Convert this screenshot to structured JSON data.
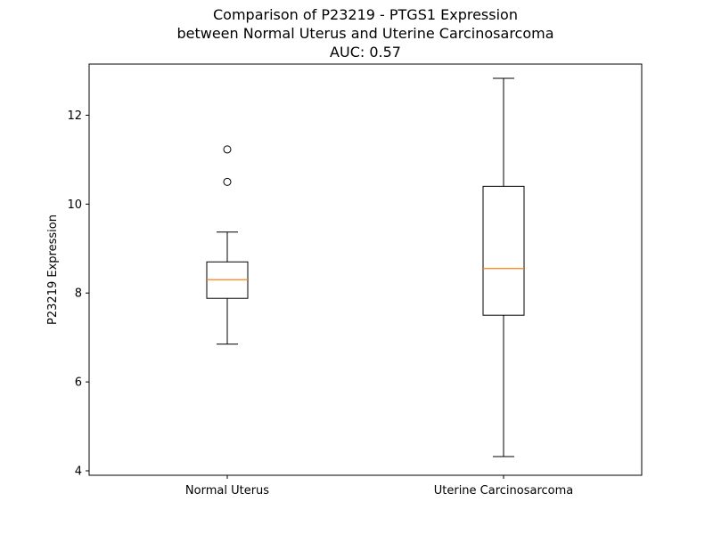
{
  "chart_data": {
    "type": "box",
    "title_lines": [
      "Comparison of P23219 - PTGS1 Expression",
      "between Normal Uterus and Uterine Carcinosarcoma",
      "AUC: 0.57"
    ],
    "xlabel": "",
    "ylabel": "P23219 Expression",
    "ylim": [
      3.9,
      13.15
    ],
    "yticks": [
      4,
      6,
      8,
      10,
      12
    ],
    "categories": [
      "Normal Uterus",
      "Uterine Carcinosarcoma"
    ],
    "boxes": [
      {
        "name": "Normal Uterus",
        "whislo": 6.85,
        "q1": 7.88,
        "med": 8.3,
        "q3": 8.7,
        "whishi": 9.37,
        "fliers": [
          10.5,
          11.23
        ]
      },
      {
        "name": "Uterine Carcinosarcoma",
        "whislo": 4.32,
        "q1": 7.5,
        "med": 8.55,
        "q3": 10.4,
        "whishi": 12.83,
        "fliers": []
      }
    ],
    "grid": false,
    "colors": {
      "box": "#000000",
      "median": "#ff7f0e",
      "axes": "#000000",
      "background": "#ffffff"
    }
  }
}
